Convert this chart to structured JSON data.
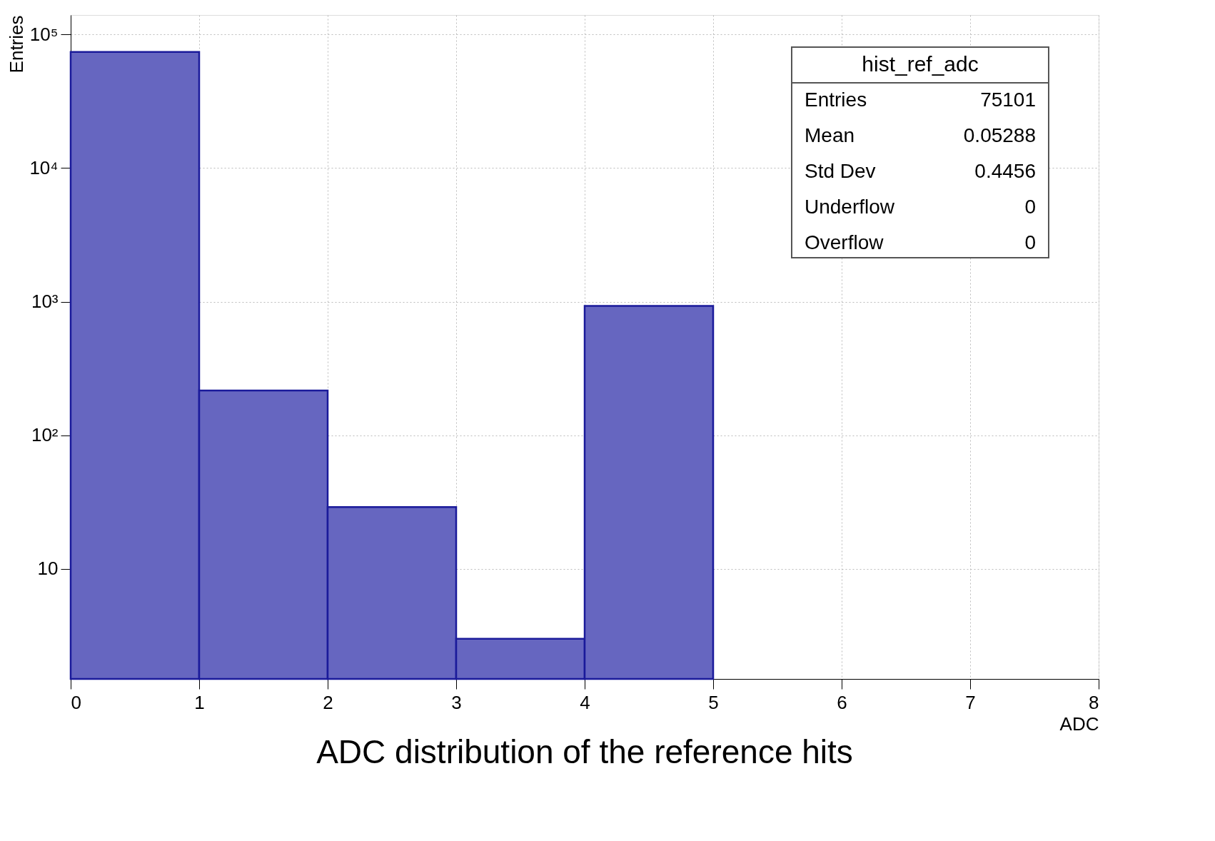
{
  "chart_data": {
    "type": "histogram",
    "title": "ADC distribution of the reference hits",
    "xlabel": "ADC",
    "ylabel": "Entries",
    "bins": [
      0,
      1,
      2,
      3,
      4,
      5
    ],
    "values": [
      74000,
      216,
      29,
      3,
      930
    ],
    "color": "#6666c0",
    "xlim": [
      0,
      8
    ],
    "xticks": [
      0,
      1,
      2,
      3,
      4,
      5,
      6,
      7,
      8
    ],
    "ylim": [
      1.5,
      140000
    ],
    "yticks": [
      {
        "value": 10,
        "label": "10"
      },
      {
        "value": 100,
        "label": "10²"
      },
      {
        "value": 1000,
        "label": "10³"
      },
      {
        "value": 10000,
        "label": "10⁴"
      },
      {
        "value": 100000,
        "label": "10⁵"
      }
    ],
    "log": "y",
    "grid": true,
    "annotations": [
      "hist_ref_adc",
      "Entries 75101",
      "Mean 0.05288",
      "Std Dev 0.4456",
      "Underflow 0",
      "Overflow 0"
    ]
  }
}
